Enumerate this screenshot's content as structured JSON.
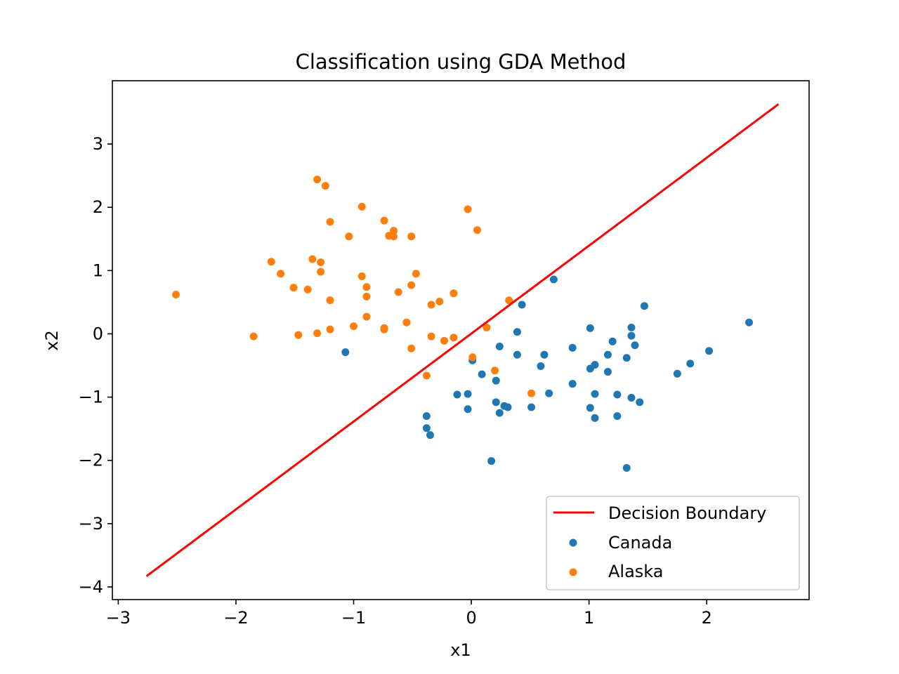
{
  "chart_data": {
    "type": "scatter",
    "title": "Classification using GDA Method",
    "xlabel": "x1",
    "ylabel": "x2",
    "xlim": [
      -3.05,
      2.87
    ],
    "ylim": [
      -4.2,
      4.0
    ],
    "xticks": [
      -3,
      -2,
      -1,
      0,
      1,
      2
    ],
    "yticks": [
      -4,
      -3,
      -2,
      -1,
      0,
      1,
      2,
      3
    ],
    "grid": false,
    "legend_position": "lower-right",
    "decision_boundary": {
      "name": "Decision Boundary",
      "color": "#ff0000",
      "x": [
        -2.76,
        2.61
      ],
      "y": [
        -3.83,
        3.63
      ]
    },
    "series": [
      {
        "name": "Canada",
        "color": "#1f77b4",
        "points": [
          [
            -1.07,
            -0.29
          ],
          [
            -0.38,
            -1.3
          ],
          [
            -0.38,
            -1.49
          ],
          [
            -0.35,
            -1.6
          ],
          [
            -0.12,
            -0.96
          ],
          [
            -0.03,
            -0.95
          ],
          [
            -0.03,
            -1.19
          ],
          [
            0.01,
            -0.42
          ],
          [
            0.09,
            -0.64
          ],
          [
            0.17,
            -2.01
          ],
          [
            0.21,
            -0.74
          ],
          [
            0.21,
            -1.08
          ],
          [
            0.24,
            -0.2
          ],
          [
            0.24,
            -1.25
          ],
          [
            0.28,
            -1.14
          ],
          [
            0.31,
            -1.16
          ],
          [
            0.39,
            0.03
          ],
          [
            0.39,
            -0.33
          ],
          [
            0.43,
            0.46
          ],
          [
            0.51,
            -1.16
          ],
          [
            0.59,
            -0.51
          ],
          [
            0.62,
            -0.33
          ],
          [
            0.66,
            -0.94
          ],
          [
            0.7,
            0.86
          ],
          [
            0.86,
            -0.22
          ],
          [
            0.86,
            -0.79
          ],
          [
            1.01,
            0.09
          ],
          [
            1.01,
            -0.55
          ],
          [
            1.01,
            -1.17
          ],
          [
            1.05,
            -0.49
          ],
          [
            1.05,
            -0.95
          ],
          [
            1.05,
            -1.33
          ],
          [
            1.16,
            -0.33
          ],
          [
            1.16,
            -0.6
          ],
          [
            1.2,
            -0.12
          ],
          [
            1.24,
            -0.96
          ],
          [
            1.24,
            -1.3
          ],
          [
            1.32,
            -0.38
          ],
          [
            1.32,
            -2.12
          ],
          [
            1.36,
            0.1
          ],
          [
            1.36,
            -0.03
          ],
          [
            1.36,
            -1.01
          ],
          [
            1.39,
            -0.18
          ],
          [
            1.43,
            -1.08
          ],
          [
            1.47,
            0.44
          ],
          [
            1.75,
            -0.63
          ],
          [
            1.86,
            -0.47
          ],
          [
            2.02,
            -0.27
          ],
          [
            2.36,
            0.18
          ]
        ]
      },
      {
        "name": "Alaska",
        "color": "#ff7f0e",
        "points": [
          [
            -2.51,
            0.62
          ],
          [
            -1.85,
            -0.04
          ],
          [
            -1.7,
            1.14
          ],
          [
            -1.62,
            0.95
          ],
          [
            -1.51,
            0.73
          ],
          [
            -1.47,
            -0.02
          ],
          [
            -1.39,
            0.7
          ],
          [
            -1.35,
            1.18
          ],
          [
            -1.31,
            0.01
          ],
          [
            -1.31,
            2.44
          ],
          [
            -1.28,
            1.13
          ],
          [
            -1.28,
            0.98
          ],
          [
            -1.24,
            2.34
          ],
          [
            -1.2,
            0.53
          ],
          [
            -1.2,
            0.07
          ],
          [
            -1.2,
            1.77
          ],
          [
            -1.04,
            1.54
          ],
          [
            -1.0,
            0.12
          ],
          [
            -0.93,
            0.91
          ],
          [
            -0.93,
            2.01
          ],
          [
            -0.89,
            0.74
          ],
          [
            -0.89,
            0.59
          ],
          [
            -0.89,
            0.27
          ],
          [
            -0.74,
            0.07
          ],
          [
            -0.74,
            0.09
          ],
          [
            -0.74,
            1.79
          ],
          [
            -0.7,
            1.55
          ],
          [
            -0.66,
            1.63
          ],
          [
            -0.66,
            1.54
          ],
          [
            -0.62,
            0.66
          ],
          [
            -0.55,
            0.18
          ],
          [
            -0.51,
            1.54
          ],
          [
            -0.51,
            0.77
          ],
          [
            -0.51,
            -0.23
          ],
          [
            -0.47,
            0.95
          ],
          [
            -0.38,
            -0.66
          ],
          [
            -0.34,
            0.46
          ],
          [
            -0.34,
            -0.04
          ],
          [
            -0.27,
            0.51
          ],
          [
            -0.23,
            -0.11
          ],
          [
            -0.15,
            0.64
          ],
          [
            -0.15,
            -0.06
          ],
          [
            -0.03,
            1.97
          ],
          [
            0.01,
            -0.37
          ],
          [
            0.05,
            1.64
          ],
          [
            0.13,
            0.1
          ],
          [
            0.2,
            -0.58
          ],
          [
            0.32,
            0.53
          ],
          [
            0.51,
            -0.94
          ]
        ]
      }
    ]
  }
}
